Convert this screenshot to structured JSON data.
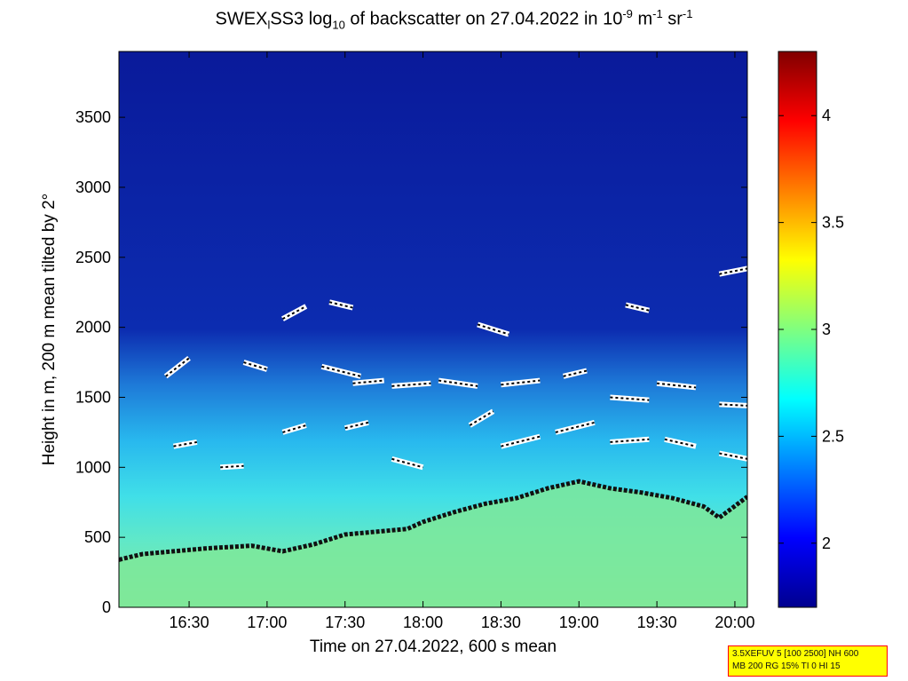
{
  "title": {
    "part1": "SWEX",
    "sub1": "l",
    "part2": "SS3 log",
    "sub2": "10",
    "part3": " of backscatter on 27.04.2022 in 10",
    "sup1": "-9",
    "part4": " m",
    "sup2": "-1",
    "part5": " sr",
    "sup3": "-1"
  },
  "info_box": {
    "line1": "3.5XEFUV 5 [100 2500] NH 600",
    "line2": "MB 200 RG 15% TI 0 HI 15"
  },
  "chart_data": {
    "type": "heatmap",
    "xlabel": "Time on 27.04.2022, 600 s mean",
    "ylabel": "Height in m, 200 m mean tilted by 2°",
    "x_range_hours": [
      16.05,
      20.08
    ],
    "ylim": [
      0,
      3970
    ],
    "x_ticks": [
      {
        "value": 16.5,
        "label": "16:30"
      },
      {
        "value": 17.0,
        "label": "17:00"
      },
      {
        "value": 17.5,
        "label": "17:30"
      },
      {
        "value": 18.0,
        "label": "18:00"
      },
      {
        "value": 18.5,
        "label": "18:30"
      },
      {
        "value": 19.0,
        "label": "19:00"
      },
      {
        "value": 19.5,
        "label": "19:30"
      },
      {
        "value": 20.0,
        "label": "20:00"
      }
    ],
    "y_ticks": [
      0,
      500,
      1000,
      1500,
      2000,
      2500,
      3000,
      3500
    ],
    "colorbar": {
      "colormap": "jet",
      "range": [
        1.7,
        4.3
      ],
      "ticks": [
        {
          "value": 2,
          "label": "2"
        },
        {
          "value": 2.5,
          "label": "2.5"
        },
        {
          "value": 3,
          "label": "3"
        },
        {
          "value": 3.5,
          "label": "3.5"
        },
        {
          "value": 4,
          "label": "4"
        }
      ]
    },
    "mixing_layer_height": {
      "x_hours": [
        16.05,
        16.2,
        16.4,
        16.6,
        16.9,
        17.1,
        17.3,
        17.5,
        17.7,
        17.9,
        18.0,
        18.2,
        18.4,
        18.6,
        18.8,
        19.0,
        19.2,
        19.4,
        19.6,
        19.8,
        19.9,
        20.08
      ],
      "height_m": [
        340,
        380,
        400,
        420,
        440,
        400,
        450,
        520,
        540,
        560,
        610,
        680,
        740,
        780,
        850,
        900,
        850,
        820,
        780,
        720,
        640,
        790
      ]
    },
    "layer_traces": [
      {
        "x_hours": [
          16.4,
          16.55
        ],
        "height_m": [
          1150,
          1180
        ]
      },
      {
        "x_hours": [
          16.7,
          16.85
        ],
        "height_m": [
          1000,
          1010
        ]
      },
      {
        "x_hours": [
          17.1,
          17.25
        ],
        "height_m": [
          1250,
          1300
        ]
      },
      {
        "x_hours": [
          17.5,
          17.65
        ],
        "height_m": [
          1280,
          1320
        ]
      },
      {
        "x_hours": [
          17.8,
          18.0
        ],
        "height_m": [
          1060,
          1000
        ]
      },
      {
        "x_hours": [
          18.3,
          18.45
        ],
        "height_m": [
          1300,
          1400
        ]
      },
      {
        "x_hours": [
          18.5,
          18.75
        ],
        "height_m": [
          1150,
          1220
        ]
      },
      {
        "x_hours": [
          18.85,
          19.1
        ],
        "height_m": [
          1250,
          1320
        ]
      },
      {
        "x_hours": [
          19.2,
          19.45
        ],
        "height_m": [
          1180,
          1200
        ]
      },
      {
        "x_hours": [
          19.55,
          19.75
        ],
        "height_m": [
          1200,
          1150
        ]
      },
      {
        "x_hours": [
          19.9,
          20.08
        ],
        "height_m": [
          1100,
          1060
        ]
      },
      {
        "x_hours": [
          16.35,
          16.5
        ],
        "height_m": [
          1650,
          1780
        ]
      },
      {
        "x_hours": [
          16.85,
          17.0
        ],
        "height_m": [
          1750,
          1700
        ]
      },
      {
        "x_hours": [
          17.35,
          17.6
        ],
        "height_m": [
          1720,
          1650
        ]
      },
      {
        "x_hours": [
          17.55,
          17.75
        ],
        "height_m": [
          1600,
          1620
        ]
      },
      {
        "x_hours": [
          17.8,
          18.05
        ],
        "height_m": [
          1580,
          1600
        ]
      },
      {
        "x_hours": [
          18.1,
          18.35
        ],
        "height_m": [
          1620,
          1580
        ]
      },
      {
        "x_hours": [
          18.5,
          18.75
        ],
        "height_m": [
          1590,
          1620
        ]
      },
      {
        "x_hours": [
          18.9,
          19.05
        ],
        "height_m": [
          1650,
          1690
        ]
      },
      {
        "x_hours": [
          19.2,
          19.45
        ],
        "height_m": [
          1500,
          1480
        ]
      },
      {
        "x_hours": [
          19.5,
          19.75
        ],
        "height_m": [
          1600,
          1570
        ]
      },
      {
        "x_hours": [
          19.9,
          20.08
        ],
        "height_m": [
          1450,
          1440
        ]
      },
      {
        "x_hours": [
          17.1,
          17.25
        ],
        "height_m": [
          2060,
          2150
        ]
      },
      {
        "x_hours": [
          17.4,
          17.55
        ],
        "height_m": [
          2180,
          2140
        ]
      },
      {
        "x_hours": [
          18.35,
          18.55
        ],
        "height_m": [
          2020,
          1950
        ]
      },
      {
        "x_hours": [
          19.3,
          19.45
        ],
        "height_m": [
          2160,
          2120
        ]
      },
      {
        "x_hours": [
          19.9,
          20.08
        ],
        "height_m": [
          2380,
          2420
        ]
      }
    ]
  }
}
